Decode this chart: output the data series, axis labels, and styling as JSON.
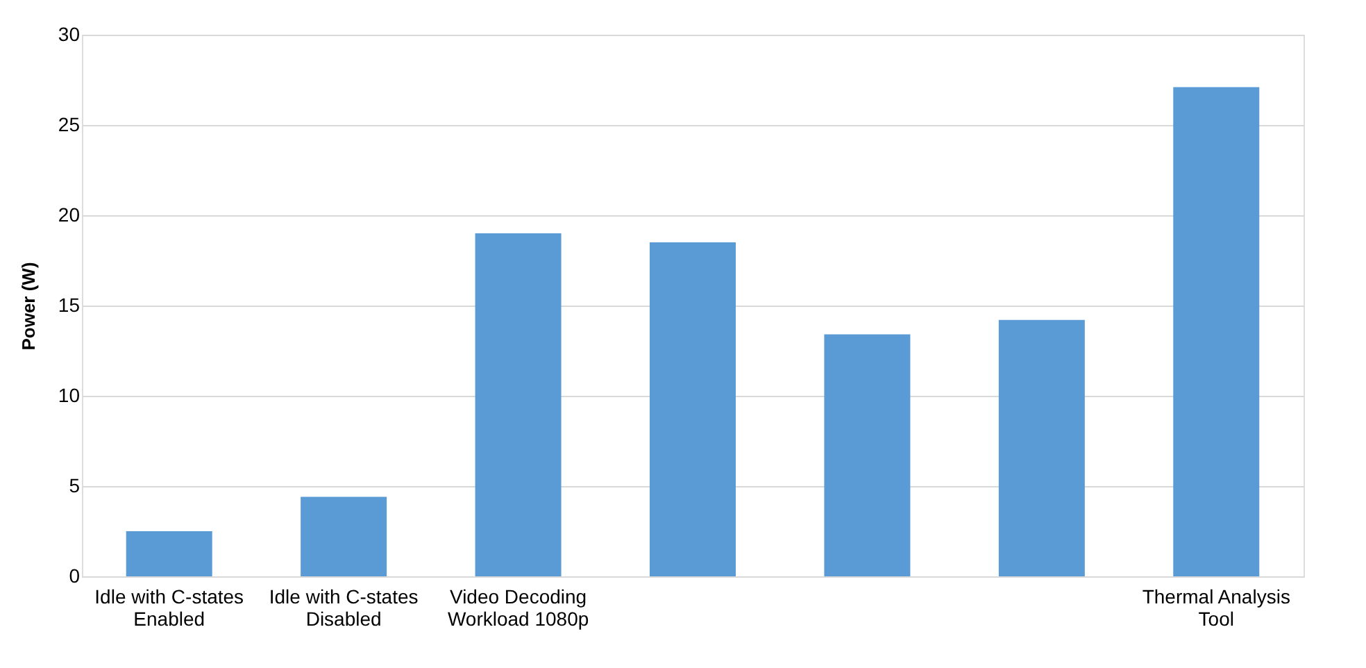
{
  "chart_data": {
    "type": "bar",
    "ylabel": "Power (W)",
    "categories": [
      "Idle with C-states Enabled",
      "Idle with C-states Disabled",
      "Video Decoding Workload 1080p",
      null,
      null,
      null,
      "Thermal Analysis Tool"
    ],
    "values": [
      2.5,
      4.4,
      19.0,
      18.5,
      13.4,
      14.2,
      27.1
    ],
    "color": "#5b9bd5",
    "ylim": [
      0,
      30
    ],
    "yticks": [
      0,
      5,
      10,
      15,
      20,
      25,
      30
    ],
    "grid": "y"
  }
}
